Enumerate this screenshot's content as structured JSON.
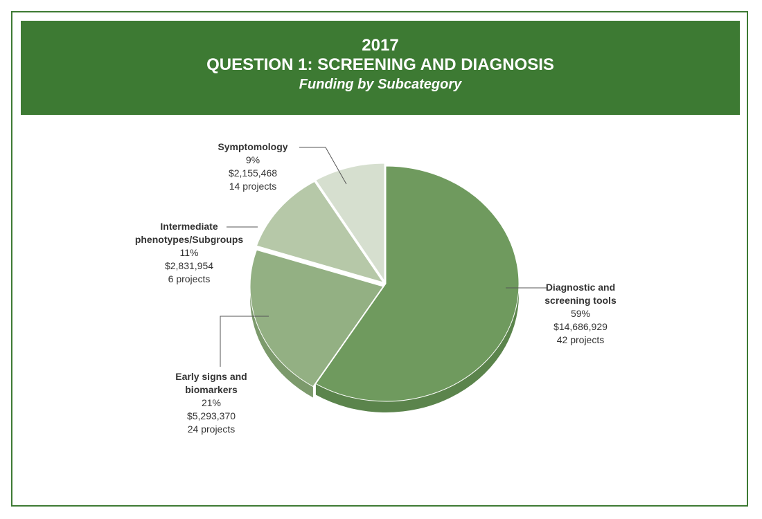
{
  "header": {
    "year": "2017",
    "title": "QUESTION 1: SCREENING AND DIAGNOSIS",
    "subtitle": "Funding by Subcategory"
  },
  "chart_data": {
    "type": "pie",
    "title": "QUESTION 1: SCREENING AND DIAGNOSIS",
    "subtitle": "Funding by Subcategory",
    "slices": [
      {
        "label_lines": [
          "Diagnostic and",
          "screening tools"
        ],
        "percent_label": "59%",
        "amount_label": "$14,686,929",
        "projects_label": "42 projects",
        "value": 14686929,
        "color": "#6f9a5e",
        "side": "#5b844c"
      },
      {
        "label_lines": [
          "Early signs and",
          "biomarkers"
        ],
        "percent_label": "21%",
        "amount_label": "$5,293,370",
        "projects_label": "24 projects",
        "value": 5293370,
        "color": "#93b083",
        "side": "#7c9a6c"
      },
      {
        "label_lines": [
          "Intermediate",
          "phenotypes/Subgroups"
        ],
        "percent_label": "11%",
        "amount_label": "$2,831,954",
        "projects_label": "6 projects",
        "value": 2831954,
        "color": "#b6c8a8",
        "side": "#9fb292"
      },
      {
        "label_lines": [
          "Symptomology"
        ],
        "percent_label": "9%",
        "amount_label": "$2,155,468",
        "projects_label": "14 projects",
        "value": 2155468,
        "color": "#d6dfcf",
        "side": "#bcc7b4"
      }
    ]
  }
}
